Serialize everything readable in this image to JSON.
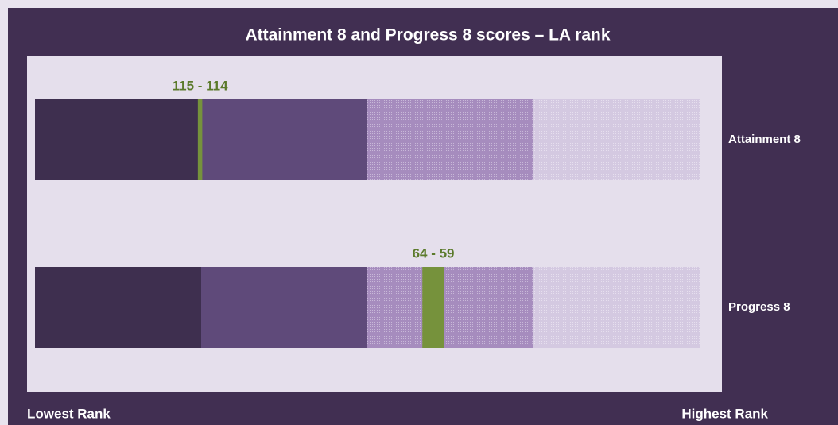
{
  "chart_data": {
    "type": "rank",
    "title": "Attainment 8 and Progress 8 scores – LA rank",
    "xlim": [
      152,
      1
    ],
    "x_start_label": "Lowest Rank",
    "x_end_label": "Highest Rank",
    "marker_color": "#76923c",
    "series": [
      {
        "name": "Attainment 8",
        "values": [
          115,
          114
        ],
        "value_labels": "115 - 114"
      },
      {
        "name": "Progress 8",
        "values": [
          64,
          59
        ],
        "value_labels": "64 - 59"
      }
    ]
  }
}
